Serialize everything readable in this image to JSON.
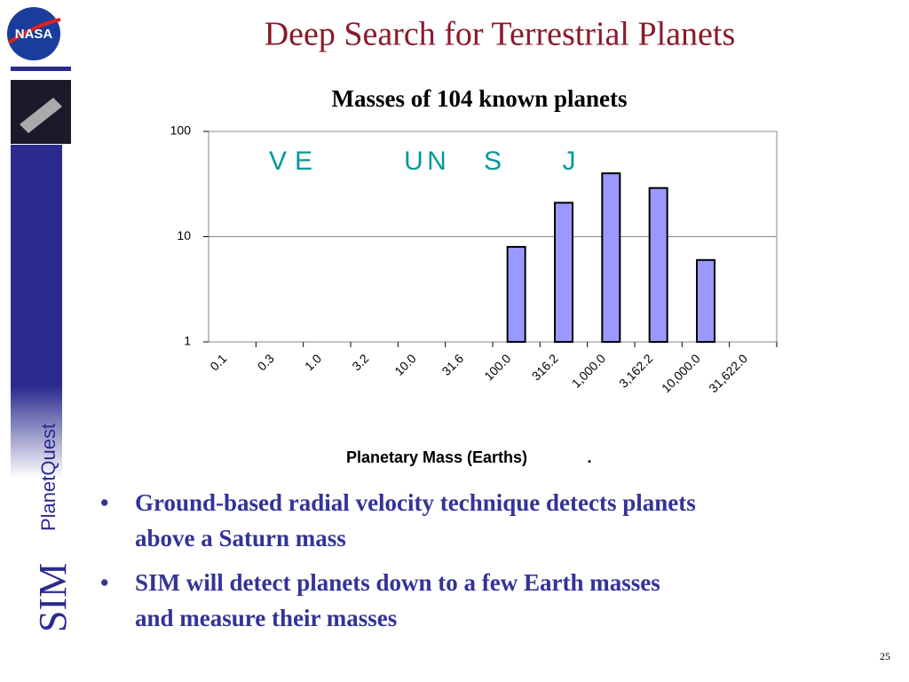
{
  "slide": {
    "title": "Deep Search for Terrestrial Planets",
    "logo": "NASA",
    "sidebar_brand": "SIM",
    "sidebar_name": "PlanetQuest",
    "bullets": [
      [
        "Ground-based radial velocity technique detects planets",
        "above a Saturn mass"
      ],
      [
        "SIM will detect planets down to a few Earth masses",
        "and measure their masses"
      ]
    ],
    "page_number": "25"
  },
  "chart_data": {
    "type": "bar",
    "title": "Masses of 104 known planets",
    "x_label": "Planetary Mass (Earths)",
    "categories": [
      "0.1",
      "0.3",
      "1.0",
      "3.2",
      "10.0",
      "31.6",
      "100.0",
      "316.2",
      "1,000.0",
      "3,162.2",
      "10,000.0",
      "31,622.0"
    ],
    "values": [
      null,
      null,
      null,
      null,
      null,
      null,
      8,
      21,
      40,
      29,
      6,
      null
    ],
    "color": "#9999ff",
    "ylim": [
      1,
      100
    ],
    "yticks": [
      1,
      10,
      100
    ],
    "log_scale": true,
    "grid": true,
    "annotations": [
      "V",
      "E",
      "U",
      "N",
      "S",
      "J",
      "."
    ],
    "annotation_color": "#009999"
  }
}
